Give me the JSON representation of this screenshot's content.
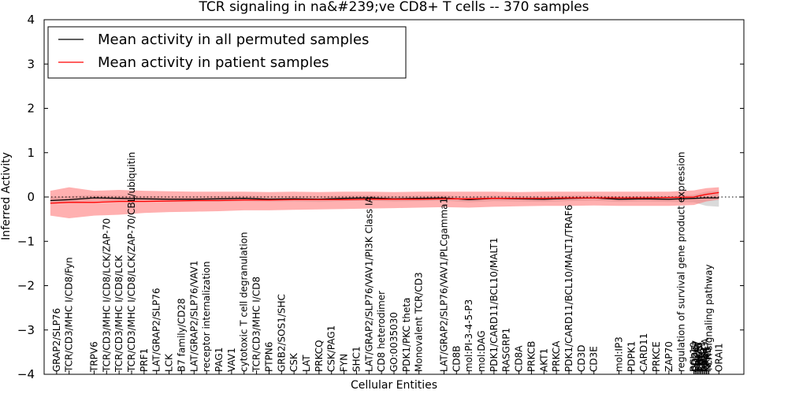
{
  "chart_data": {
    "type": "line",
    "title": "TCR signaling in na&#239;ve CD8+ T cells -- 370 samples",
    "xlabel": "Cellular Entities",
    "ylabel": "Inferred Activity",
    "ylim": [
      -4,
      4
    ],
    "yticks": [
      -4,
      -3,
      -2,
      -1,
      0,
      1,
      2,
      3,
      4
    ],
    "ytick_labels": [
      "−4",
      "−3",
      "−2",
      "−1",
      "0",
      "1",
      "2",
      "3",
      "4"
    ],
    "grid": false,
    "reference_line": 0,
    "legend_position": "top-left",
    "categories": [
      "GRAP2/SLP76",
      "TCR/CD3/MHC I/CD8/Fyn",
      "TRPV6",
      "TCR/CD3/MHC I/CD8/LCK/ZAP-70",
      "TCR/CD3/MHC I/CD8/LCK",
      "TCR/CD3/MHC I/CD8/LCK/ZAP-70/CBL/ubiquitin",
      "PRF1",
      "LAT/GRAP2/SLP76",
      "LCK",
      "B7 family/CD28",
      "LAT/GRAP2/SLP76/VAV1",
      "receptor internalization",
      "PAG1",
      "VAV1",
      "cytotoxic T cell degranulation",
      "TCR/CD3/MHC I/CD8",
      "PTPN6",
      "GRB2/SOS1/SHC",
      "CSK",
      "LAT",
      "PRKCQ",
      "CSK/PAG1",
      "FYN",
      "SHC1",
      "LAT/GRAP2/SLP76/VAV1/PI3K Class IA",
      "CD8 heterodimer",
      "GO:0035030",
      "PDK1/PKC theta",
      "Monovalent TCR/CD3",
      "LAT/GRAP2/SLP76/VAV1/PLCgamma1",
      "CD8B",
      "mol:PI-3-4-5-P3",
      "mol:DAG",
      "PDK1/CARD11/BCL10/MALT1",
      "RASGRP1",
      "CD8A",
      "PRKCB",
      "AKT1",
      "PRKCA",
      "PDK1/CARD11/BCL10/MALT1/TRAF6",
      "CD3D",
      "CD3E",
      "mol:IP3",
      "PDPK1",
      "CARD11",
      "PRKCE",
      "ZAP70",
      "regulation of survival gene product expression",
      "BCL10",
      "CD3G",
      "CD247",
      "MALT1",
      "TRAF6",
      "CBL",
      "PLCG1",
      "GRB2",
      "SOS1",
      "PIK3CA",
      "KRAS",
      "NFKB",
      "TCR signaling pathway",
      "ORAI1"
    ],
    "category_positions": [
      1,
      2,
      4,
      5,
      6,
      7,
      8,
      9,
      10,
      11,
      12,
      13,
      14,
      15,
      16,
      17,
      18,
      19,
      20,
      21,
      22,
      23,
      24,
      25,
      26,
      27,
      28,
      29,
      30,
      32,
      33,
      34,
      35,
      36,
      37,
      38,
      39,
      40,
      41,
      42,
      43,
      44,
      46,
      47,
      48,
      49,
      50,
      51,
      52,
      52.1,
      52.2,
      52.3,
      52.4,
      52.5,
      52.6,
      52.7,
      52.8,
      52.9,
      53.0,
      53.1,
      53.2,
      54
    ],
    "x_range": [
      0,
      56
    ],
    "series": [
      {
        "name": "Mean activity in all permuted samples",
        "color": "#000000",
        "band_color": "#bbbbbb",
        "x": [
          0.5,
          2,
          4,
          6,
          8,
          10,
          12,
          14,
          16,
          18,
          20,
          22,
          24,
          26,
          28,
          30,
          32,
          34,
          36,
          38,
          40,
          42,
          44,
          46,
          48,
          50,
          52,
          53,
          54
        ],
        "mean": [
          -0.08,
          -0.06,
          -0.02,
          -0.03,
          -0.04,
          -0.05,
          -0.05,
          -0.04,
          -0.03,
          -0.05,
          -0.04,
          -0.05,
          -0.03,
          -0.02,
          -0.04,
          -0.03,
          -0.02,
          -0.06,
          -0.03,
          -0.04,
          -0.05,
          -0.03,
          -0.02,
          -0.05,
          -0.04,
          -0.05,
          -0.03,
          -0.02,
          -0.02
        ],
        "lower": [
          -0.16,
          -0.12,
          -0.08,
          -0.09,
          -0.1,
          -0.11,
          -0.11,
          -0.1,
          -0.09,
          -0.1,
          -0.1,
          -0.11,
          -0.09,
          -0.08,
          -0.1,
          -0.09,
          -0.08,
          -0.12,
          -0.09,
          -0.1,
          -0.11,
          -0.09,
          -0.08,
          -0.11,
          -0.1,
          -0.11,
          -0.12,
          -0.2,
          -0.22
        ],
        "upper": [
          0.0,
          0.02,
          0.04,
          0.03,
          0.02,
          0.01,
          0.01,
          0.02,
          0.03,
          0.01,
          0.02,
          0.01,
          0.03,
          0.04,
          0.02,
          0.03,
          0.04,
          0.0,
          0.03,
          0.02,
          0.01,
          0.03,
          0.04,
          0.01,
          0.02,
          0.02,
          0.05,
          0.12,
          0.14
        ]
      },
      {
        "name": "Mean activity in patient samples",
        "color": "#ff0000",
        "band_color": "#ff6f6f",
        "x": [
          0.5,
          2,
          4,
          6,
          8,
          10,
          12,
          14,
          16,
          18,
          20,
          22,
          24,
          26,
          28,
          30,
          32,
          34,
          36,
          38,
          40,
          42,
          44,
          46,
          48,
          50,
          52,
          53,
          54
        ],
        "mean": [
          -0.14,
          -0.12,
          -0.12,
          -0.1,
          -0.1,
          -0.09,
          -0.08,
          -0.08,
          -0.07,
          -0.07,
          -0.06,
          -0.06,
          -0.06,
          -0.05,
          -0.05,
          -0.05,
          -0.04,
          -0.04,
          -0.03,
          -0.03,
          -0.03,
          -0.02,
          -0.02,
          -0.02,
          -0.02,
          -0.01,
          0.0,
          0.06,
          0.1
        ],
        "lower": [
          -0.42,
          -0.48,
          -0.42,
          -0.4,
          -0.36,
          -0.34,
          -0.33,
          -0.32,
          -0.3,
          -0.3,
          -0.29,
          -0.28,
          -0.27,
          -0.26,
          -0.25,
          -0.24,
          -0.23,
          -0.24,
          -0.22,
          -0.21,
          -0.2,
          -0.2,
          -0.19,
          -0.2,
          -0.2,
          -0.2,
          -0.18,
          -0.1,
          -0.06
        ],
        "upper": [
          0.14,
          0.22,
          0.14,
          0.16,
          0.14,
          0.13,
          0.12,
          0.12,
          0.12,
          0.11,
          0.12,
          0.11,
          0.12,
          0.12,
          0.11,
          0.12,
          0.12,
          0.12,
          0.12,
          0.11,
          0.12,
          0.12,
          0.12,
          0.12,
          0.12,
          0.12,
          0.15,
          0.2,
          0.22
        ]
      }
    ]
  }
}
